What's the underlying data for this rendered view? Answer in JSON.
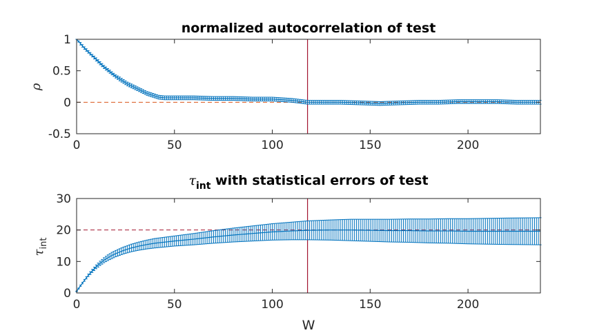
{
  "chart_data": [
    {
      "type": "line",
      "title": "normalized autocorrelation of test",
      "xlabel": "",
      "ylabel": "ρ",
      "xlim": [
        0,
        237
      ],
      "ylim": [
        -0.5,
        1
      ],
      "xticks": [
        "0",
        "50",
        "100",
        "150",
        "200"
      ],
      "yticks": [
        "-0.5",
        "0",
        "0.5",
        "1"
      ],
      "reference_line_y": 0,
      "marker_line_x": 118,
      "series_color": "#0072bd",
      "ref_color": "#d95319",
      "marker_color": "#a2142f",
      "points": [
        [
          0,
          1.0,
          0.0
        ],
        [
          2,
          0.93,
          0.02
        ],
        [
          4,
          0.86,
          0.02
        ],
        [
          6,
          0.8,
          0.02
        ],
        [
          8,
          0.74,
          0.02
        ],
        [
          10,
          0.68,
          0.025
        ],
        [
          12,
          0.62,
          0.025
        ],
        [
          14,
          0.56,
          0.025
        ],
        [
          16,
          0.51,
          0.025
        ],
        [
          18,
          0.46,
          0.025
        ],
        [
          20,
          0.41,
          0.025
        ],
        [
          22,
          0.37,
          0.03
        ],
        [
          24,
          0.33,
          0.03
        ],
        [
          26,
          0.29,
          0.03
        ],
        [
          28,
          0.26,
          0.03
        ],
        [
          30,
          0.23,
          0.03
        ],
        [
          32,
          0.2,
          0.03
        ],
        [
          34,
          0.17,
          0.03
        ],
        [
          36,
          0.14,
          0.03
        ],
        [
          38,
          0.12,
          0.03
        ],
        [
          40,
          0.1,
          0.03
        ],
        [
          42,
          0.08,
          0.03
        ],
        [
          45,
          0.07,
          0.03
        ],
        [
          50,
          0.07,
          0.03
        ],
        [
          60,
          0.07,
          0.03
        ],
        [
          70,
          0.06,
          0.03
        ],
        [
          80,
          0.06,
          0.03
        ],
        [
          90,
          0.05,
          0.03
        ],
        [
          100,
          0.05,
          0.03
        ],
        [
          110,
          0.03,
          0.03
        ],
        [
          118,
          0.0,
          0.03
        ],
        [
          125,
          0.0,
          0.03
        ],
        [
          135,
          0.0,
          0.03
        ],
        [
          145,
          -0.01,
          0.03
        ],
        [
          155,
          -0.02,
          0.03
        ],
        [
          165,
          -0.01,
          0.03
        ],
        [
          175,
          0.0,
          0.03
        ],
        [
          185,
          0.0,
          0.03
        ],
        [
          195,
          0.01,
          0.03
        ],
        [
          205,
          0.01,
          0.03
        ],
        [
          215,
          0.01,
          0.03
        ],
        [
          225,
          0.0,
          0.03
        ],
        [
          237,
          0.0,
          0.03
        ]
      ]
    },
    {
      "type": "line",
      "title": "τ",
      "title_sub": "int",
      "title_rest": " with statistical errors of test",
      "xlabel": "W",
      "ylabel": "τ",
      "ylabel_sub": "int",
      "xlim": [
        0,
        237
      ],
      "ylim": [
        0,
        30
      ],
      "xticks": [
        "0",
        "50",
        "100",
        "150",
        "200"
      ],
      "yticks": [
        "0",
        "10",
        "20",
        "30"
      ],
      "reference_line_y": 20,
      "marker_line_x": 118,
      "series_color": "#0072bd",
      "ref_color": "#a2142f",
      "marker_color": "#a2142f",
      "points": [
        [
          0,
          0.5,
          0.1
        ],
        [
          2,
          2.3,
          0.2
        ],
        [
          4,
          4.0,
          0.3
        ],
        [
          6,
          5.6,
          0.4
        ],
        [
          8,
          7.0,
          0.5
        ],
        [
          10,
          8.3,
          0.6
        ],
        [
          12,
          9.4,
          0.7
        ],
        [
          14,
          10.4,
          0.8
        ],
        [
          16,
          11.2,
          0.9
        ],
        [
          18,
          11.9,
          1.0
        ],
        [
          20,
          12.5,
          1.0
        ],
        [
          24,
          13.5,
          1.1
        ],
        [
          28,
          14.3,
          1.2
        ],
        [
          32,
          14.9,
          1.3
        ],
        [
          36,
          15.4,
          1.4
        ],
        [
          40,
          15.8,
          1.5
        ],
        [
          50,
          16.5,
          1.6
        ],
        [
          60,
          17.1,
          1.8
        ],
        [
          70,
          17.8,
          2.0
        ],
        [
          80,
          18.4,
          2.2
        ],
        [
          90,
          18.9,
          2.4
        ],
        [
          100,
          19.4,
          2.6
        ],
        [
          110,
          19.7,
          2.8
        ],
        [
          118,
          19.9,
          3.0
        ],
        [
          130,
          20.0,
          3.2
        ],
        [
          140,
          20.0,
          3.4
        ],
        [
          150,
          19.9,
          3.5
        ],
        [
          160,
          19.8,
          3.6
        ],
        [
          170,
          19.8,
          3.7
        ],
        [
          180,
          19.7,
          3.8
        ],
        [
          190,
          19.7,
          3.9
        ],
        [
          200,
          19.6,
          4.0
        ],
        [
          210,
          19.6,
          4.1
        ],
        [
          220,
          19.6,
          4.2
        ],
        [
          237,
          19.6,
          4.3
        ]
      ]
    }
  ]
}
